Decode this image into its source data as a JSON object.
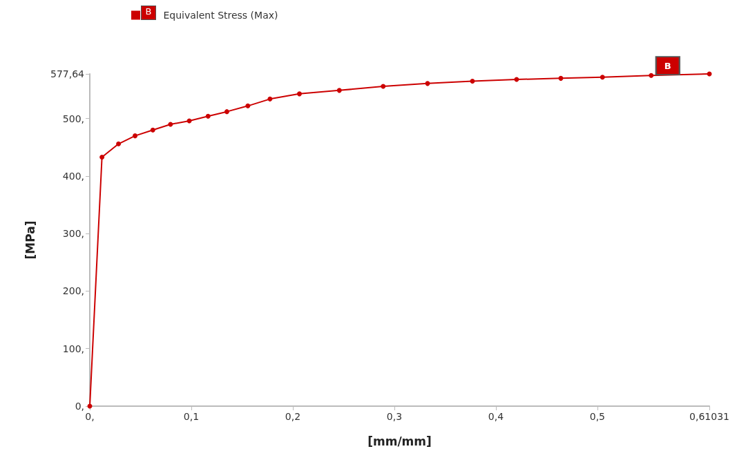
{
  "chart_data": {
    "type": "line",
    "xlabel": "[mm/mm]",
    "ylabel": "[MPa]",
    "series": [
      {
        "name": "Equivalent Stress (Max)",
        "color": "#cc0000",
        "x": [
          0,
          0.012,
          0.0283,
          0.0446,
          0.0621,
          0.0795,
          0.098,
          0.1165,
          0.135,
          0.1557,
          0.1775,
          0.2065,
          0.2458,
          0.289,
          0.3327,
          0.3769,
          0.4204,
          0.464,
          0.505,
          0.553,
          0.61031
        ],
        "values": [
          0,
          433,
          456,
          470,
          480,
          490,
          496,
          504,
          512,
          522,
          534,
          543,
          549,
          556,
          561,
          565,
          568,
          570,
          572,
          575,
          577.64
        ]
      }
    ],
    "xlim": [
      0,
      0.61031
    ],
    "xticks": [
      {
        "value": 0,
        "label": "0,"
      },
      {
        "value": 0.1,
        "label": "0,1"
      },
      {
        "value": 0.2,
        "label": "0,2"
      },
      {
        "value": 0.3,
        "label": "0,3"
      },
      {
        "value": 0.4,
        "label": "0,4"
      },
      {
        "value": 0.5,
        "label": "0,5"
      },
      {
        "value": 0.61031,
        "label": "0,61031"
      }
    ],
    "ylim": [
      0,
      577.64
    ],
    "yticks": [
      {
        "value": 0,
        "label": "0,"
      },
      {
        "value": 100,
        "label": "100,"
      },
      {
        "value": 200,
        "label": "200,"
      },
      {
        "value": 300,
        "label": "300,"
      },
      {
        "value": 400,
        "label": "400,"
      },
      {
        "value": 500,
        "label": "500,"
      },
      {
        "value": 577.64,
        "label": "577,64"
      }
    ],
    "annotations": [
      {
        "text": "B",
        "x": 0.553,
        "y": 575
      }
    ],
    "grid": false,
    "legend": "top left",
    "marker": "circle",
    "line_style": "solid"
  }
}
